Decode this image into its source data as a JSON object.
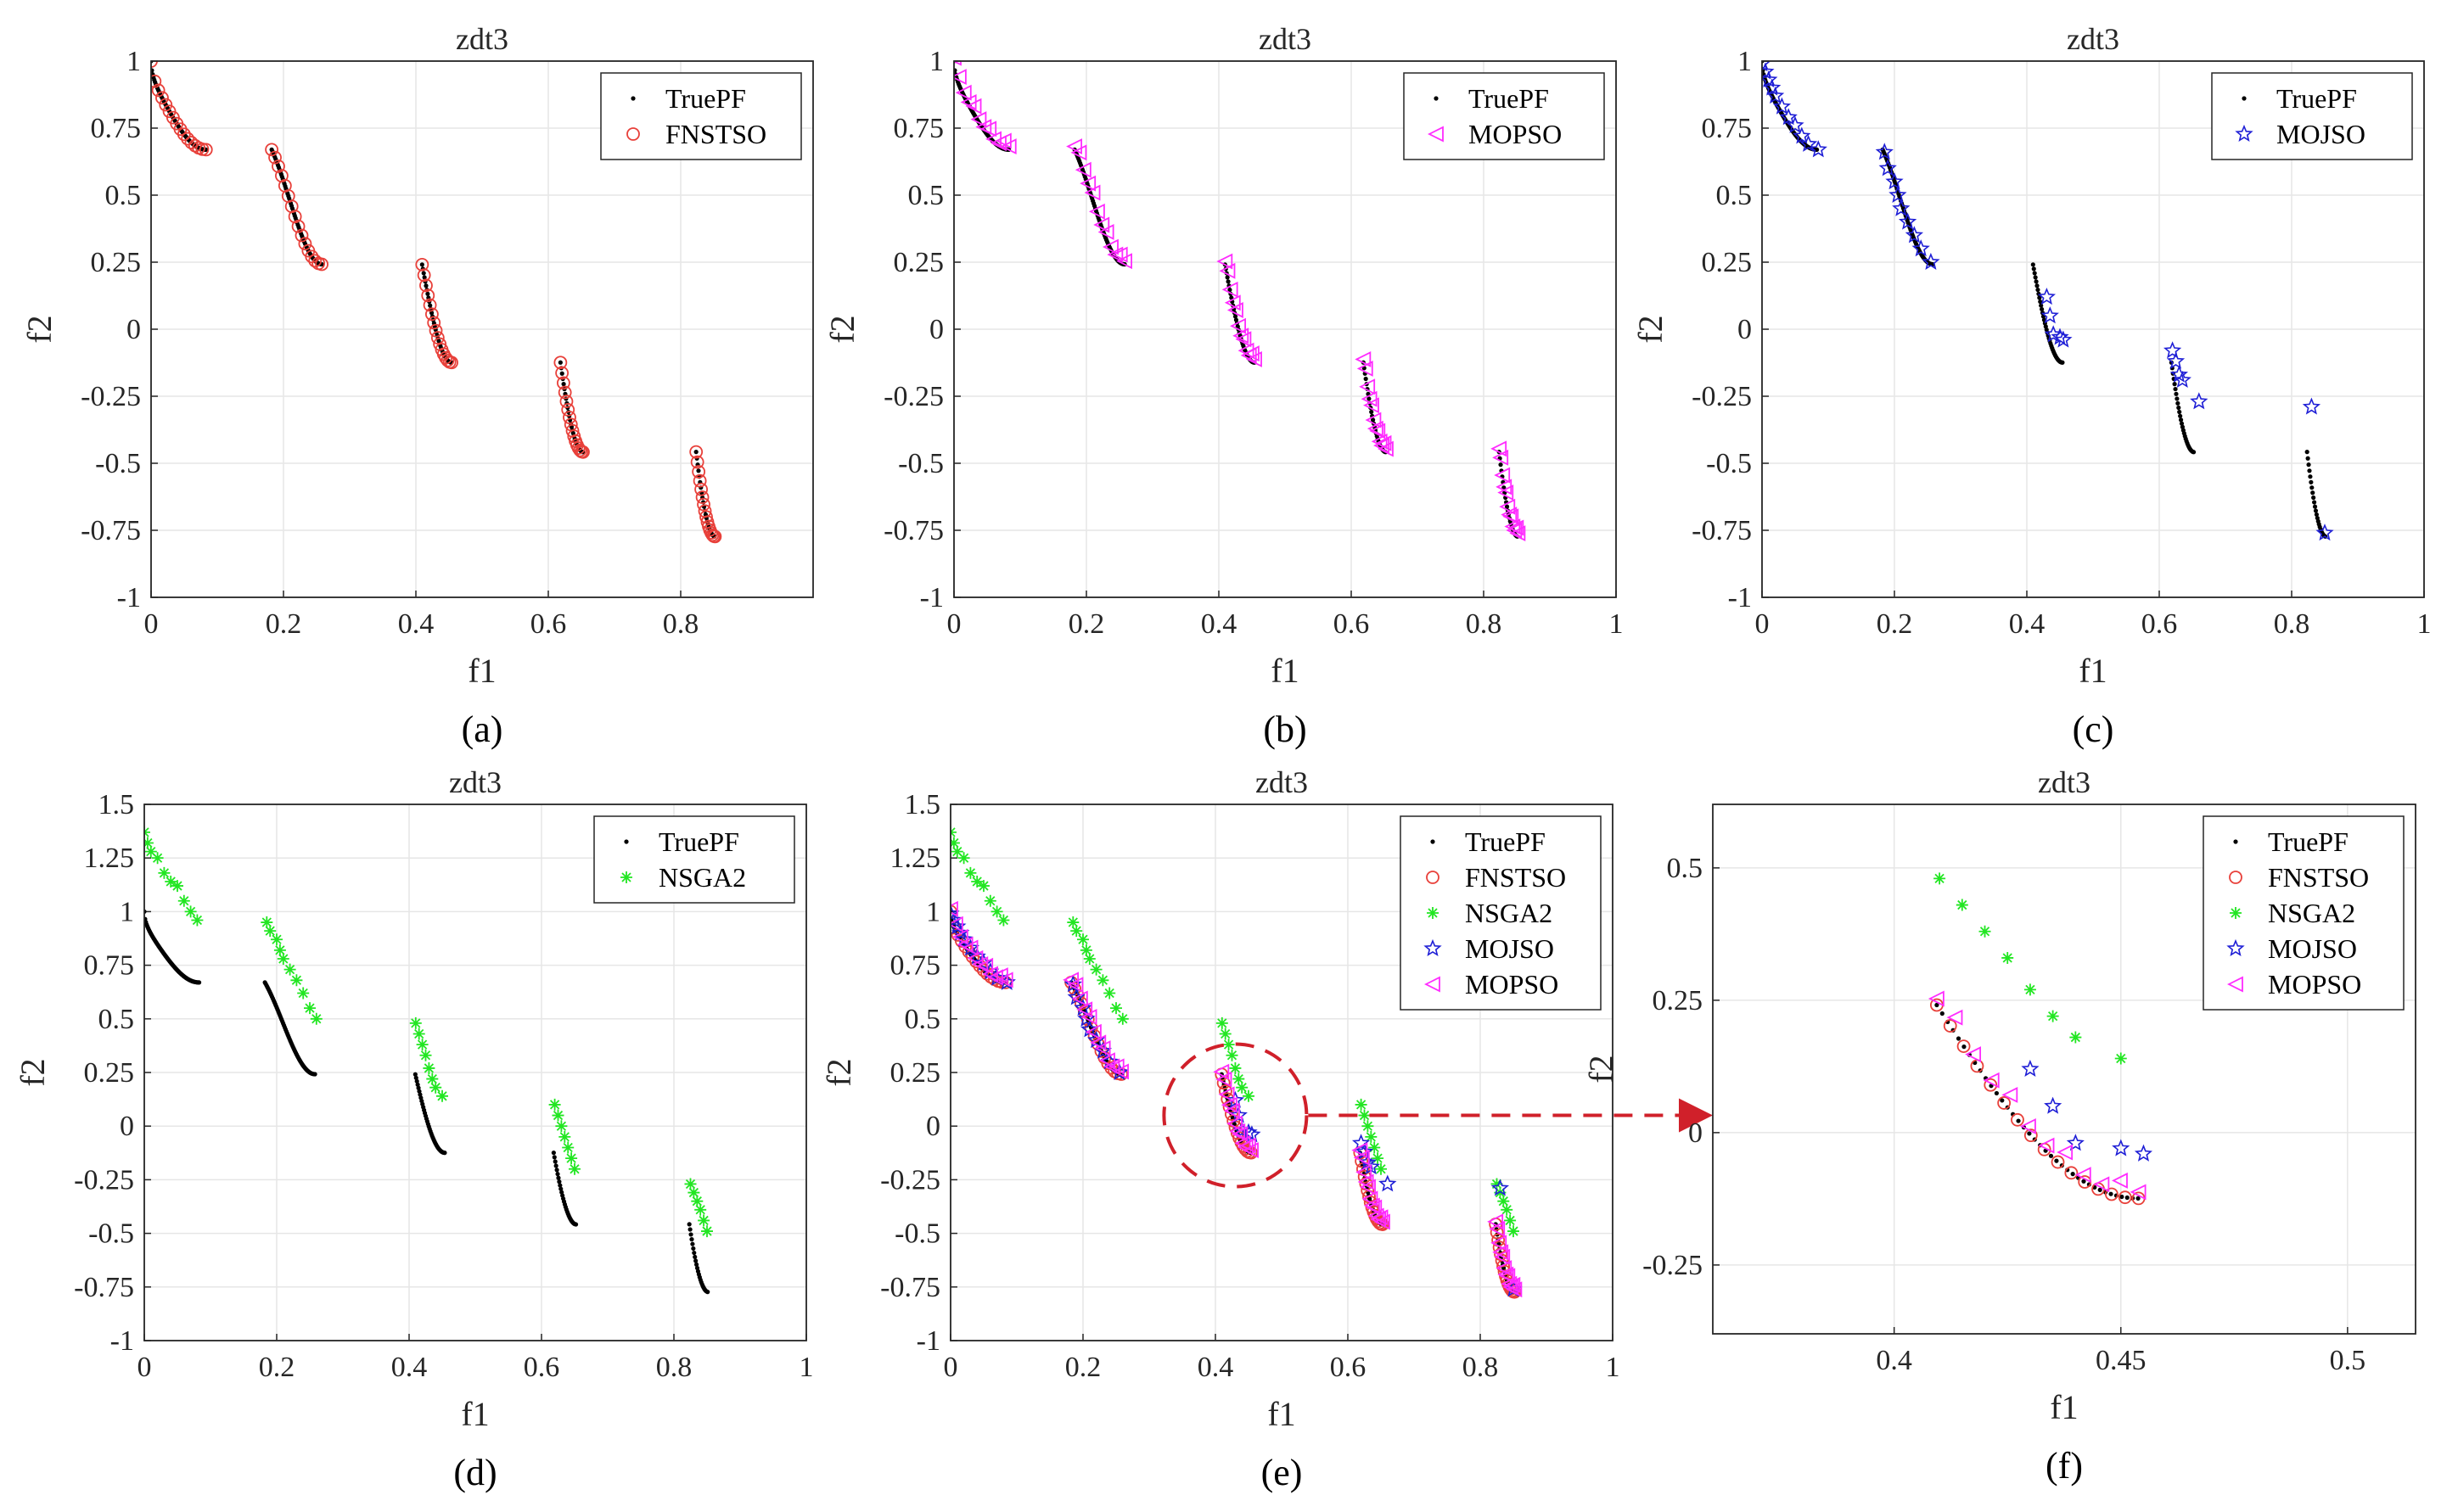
{
  "chart_data": [
    {
      "id": "a",
      "type": "scatter",
      "title": "zdt3",
      "xlabel": "f1",
      "ylabel": "f2",
      "caption": "(a)",
      "xlim": [
        0,
        1
      ],
      "ylim": [
        -1,
        1
      ],
      "xticks": [
        "0",
        "0.2",
        "0.4",
        "0.6",
        "0.8"
      ],
      "yticks": [
        "1",
        "0.75",
        "0.5",
        "0.25",
        "0",
        "-0.25",
        "-0.5",
        "-0.75",
        "-1"
      ],
      "legend": [
        "TruePF",
        "FNSTSO"
      ],
      "legend_position": "top-right",
      "series": [
        {
          "name": "TruePF",
          "marker": "dot",
          "color": "#000000",
          "source": "zdt3 true Pareto front"
        },
        {
          "name": "FNSTSO",
          "marker": "circle",
          "color": "#e8403a",
          "source": "on front"
        }
      ]
    },
    {
      "id": "b",
      "type": "scatter",
      "title": "zdt3",
      "xlabel": "f1",
      "ylabel": "f2",
      "caption": "(b)",
      "xlim": [
        0,
        1
      ],
      "ylim": [
        -1,
        1
      ],
      "xticks": [
        "0",
        "0.2",
        "0.4",
        "0.6",
        "0.8",
        "1"
      ],
      "yticks": [
        "1",
        "0.75",
        "0.5",
        "0.25",
        "0",
        "-0.25",
        "-0.5",
        "-0.75",
        "-1"
      ],
      "legend": [
        "TruePF",
        "MOPSO"
      ],
      "legend_position": "top-right",
      "series": [
        {
          "name": "TruePF",
          "marker": "dot",
          "color": "#000000"
        },
        {
          "name": "MOPSO",
          "marker": "triangle-left",
          "color": "#ff2bff",
          "offset": 0.03
        }
      ]
    },
    {
      "id": "c",
      "type": "scatter",
      "title": "zdt3",
      "xlabel": "f1",
      "ylabel": "f2",
      "caption": "(c)",
      "xlim": [
        0,
        1
      ],
      "ylim": [
        -1,
        1
      ],
      "xticks": [
        "0",
        "0.2",
        "0.4",
        "0.6",
        "0.8",
        "1"
      ],
      "yticks": [
        "1",
        "0.75",
        "0.5",
        "0.25",
        "0",
        "-0.25",
        "-0.5",
        "-0.75",
        "-1"
      ],
      "legend": [
        "TruePF",
        "MOJSO"
      ],
      "legend_position": "top-right",
      "series": [
        {
          "name": "TruePF",
          "marker": "dot",
          "color": "#000000"
        },
        {
          "name": "MOJSO",
          "marker": "star",
          "color": "#1f1fd6",
          "points": [
            [
              0.0,
              0.99
            ],
            [
              0.005,
              0.96
            ],
            [
              0.01,
              0.93
            ],
            [
              0.015,
              0.9
            ],
            [
              0.02,
              0.87
            ],
            [
              0.03,
              0.83
            ],
            [
              0.04,
              0.79
            ],
            [
              0.05,
              0.76
            ],
            [
              0.06,
              0.72
            ],
            [
              0.07,
              0.69
            ],
            [
              0.085,
              0.67
            ],
            [
              0.185,
              0.66
            ],
            [
              0.19,
              0.6
            ],
            [
              0.2,
              0.55
            ],
            [
              0.205,
              0.5
            ],
            [
              0.21,
              0.45
            ],
            [
              0.22,
              0.4
            ],
            [
              0.23,
              0.35
            ],
            [
              0.24,
              0.3
            ],
            [
              0.255,
              0.25
            ],
            [
              0.43,
              0.12
            ],
            [
              0.435,
              0.05
            ],
            [
              0.44,
              -0.02
            ],
            [
              0.45,
              -0.03
            ],
            [
              0.455,
              -0.04
            ],
            [
              0.62,
              -0.08
            ],
            [
              0.625,
              -0.12
            ],
            [
              0.63,
              -0.17
            ],
            [
              0.635,
              -0.19
            ],
            [
              0.66,
              -0.27
            ],
            [
              0.83,
              -0.29
            ],
            [
              0.85,
              -0.76
            ]
          ]
        }
      ]
    },
    {
      "id": "d",
      "type": "scatter",
      "title": "zdt3",
      "xlabel": "f1",
      "ylabel": "f2",
      "caption": "(d)",
      "xlim": [
        0,
        1
      ],
      "ylim": [
        -1,
        1.5
      ],
      "xticks": [
        "0",
        "0.2",
        "0.4",
        "0.6",
        "0.8",
        "1"
      ],
      "yticks": [
        "1.5",
        "1.25",
        "1",
        "0.75",
        "0.5",
        "0.25",
        "0",
        "-0.25",
        "-0.5",
        "-0.75",
        "-1"
      ],
      "legend": [
        "TruePF",
        "NSGA2"
      ],
      "legend_position": "top-right",
      "series": [
        {
          "name": "TruePF",
          "marker": "dot",
          "color": "#000000"
        },
        {
          "name": "NSGA2",
          "marker": "asterisk",
          "color": "#22e622",
          "points": [
            [
              0.0,
              1.37
            ],
            [
              0.005,
              1.32
            ],
            [
              0.01,
              1.28
            ],
            [
              0.02,
              1.25
            ],
            [
              0.03,
              1.18
            ],
            [
              0.04,
              1.14
            ],
            [
              0.05,
              1.12
            ],
            [
              0.06,
              1.05
            ],
            [
              0.07,
              1.0
            ],
            [
              0.08,
              0.96
            ],
            [
              0.185,
              0.95
            ],
            [
              0.19,
              0.91
            ],
            [
              0.2,
              0.87
            ],
            [
              0.205,
              0.82
            ],
            [
              0.21,
              0.78
            ],
            [
              0.22,
              0.73
            ],
            [
              0.23,
              0.68
            ],
            [
              0.24,
              0.62
            ],
            [
              0.25,
              0.55
            ],
            [
              0.26,
              0.5
            ],
            [
              0.41,
              0.48
            ],
            [
              0.415,
              0.43
            ],
            [
              0.42,
              0.38
            ],
            [
              0.425,
              0.33
            ],
            [
              0.43,
              0.27
            ],
            [
              0.435,
              0.22
            ],
            [
              0.44,
              0.18
            ],
            [
              0.45,
              0.14
            ],
            [
              0.62,
              0.1
            ],
            [
              0.625,
              0.05
            ],
            [
              0.63,
              0.0
            ],
            [
              0.635,
              -0.05
            ],
            [
              0.64,
              -0.1
            ],
            [
              0.645,
              -0.15
            ],
            [
              0.65,
              -0.2
            ],
            [
              0.825,
              -0.27
            ],
            [
              0.83,
              -0.31
            ],
            [
              0.835,
              -0.35
            ],
            [
              0.84,
              -0.39
            ],
            [
              0.845,
              -0.44
            ],
            [
              0.85,
              -0.49
            ]
          ]
        }
      ]
    },
    {
      "id": "e",
      "type": "scatter",
      "title": "zdt3",
      "xlabel": "f1",
      "ylabel": "f2",
      "caption": "(e)",
      "xlim": [
        0,
        1
      ],
      "ylim": [
        -1,
        1.5
      ],
      "xticks": [
        "0",
        "0.2",
        "0.4",
        "0.6",
        "0.8",
        "1"
      ],
      "yticks": [
        "1.5",
        "1.25",
        "1",
        "0.75",
        "0.5",
        "0.25",
        "0",
        "-0.25",
        "-0.5",
        "-0.75",
        "-1"
      ],
      "legend": [
        "TruePF",
        "FNSTSO",
        "NSGA2",
        "MOJSO",
        "MOPSO"
      ],
      "legend_position": "top-right",
      "highlight": {
        "shape": "dashed-circle",
        "center": [
          0.43,
          0.05
        ],
        "color": "#d0202a",
        "arrow_to": "f"
      }
    },
    {
      "id": "f",
      "type": "scatter",
      "title": "zdt3",
      "xlabel": "f1",
      "ylabel": "f2",
      "caption": "(f)",
      "xlim": [
        0.36,
        0.515
      ],
      "ylim": [
        -0.38,
        0.62
      ],
      "xticks": [
        "0.4",
        "0.45",
        "0.5"
      ],
      "yticks": [
        "0.5",
        "0.25",
        "0",
        "-0.25"
      ],
      "legend": [
        "TruePF",
        "FNSTSO",
        "NSGA2",
        "MOJSO",
        "MOPSO"
      ],
      "legend_position": "top-right"
    }
  ],
  "colors": {
    "truepf": "#000000",
    "fnstso": "#e8403a",
    "mopso": "#ff2bff",
    "mojso": "#1f1fd6",
    "nsga2": "#22e622",
    "grid": "#e6e6e6",
    "axis": "#262626",
    "highlight": "#d0202a"
  }
}
